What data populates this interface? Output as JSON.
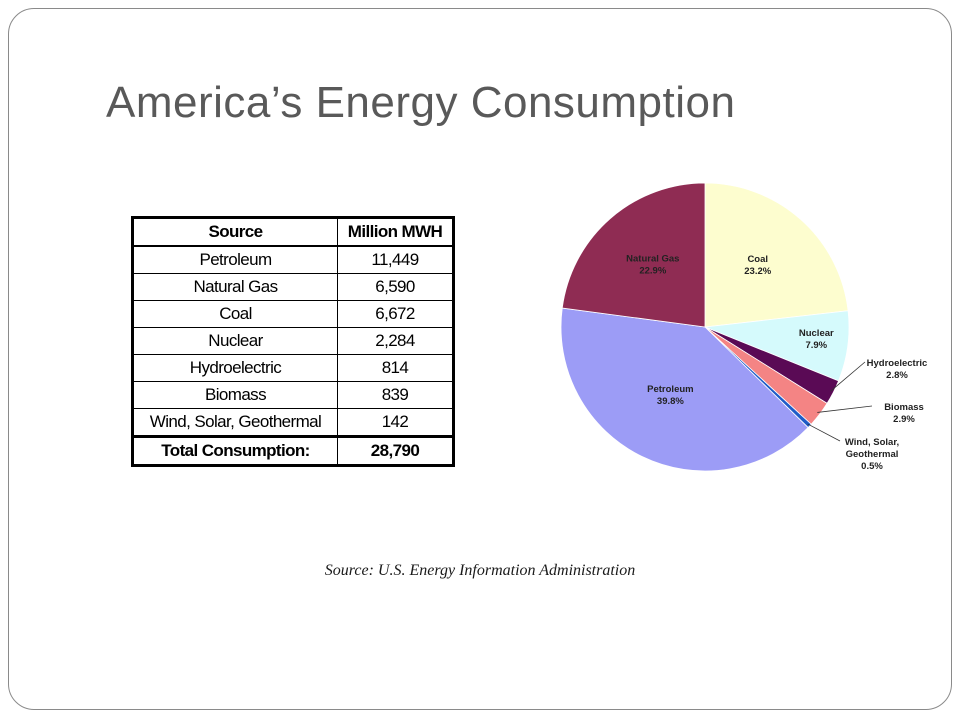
{
  "slide": {
    "title": "America’s Energy Consumption",
    "source_note": "Source: U.S. Energy Information Administration"
  },
  "table": {
    "headers": [
      "Source",
      "Million MWH"
    ],
    "rows": [
      {
        "source": "Petroleum",
        "value": "11,449"
      },
      {
        "source": "Natural Gas",
        "value": "6,590"
      },
      {
        "source": "Coal",
        "value": "6,672"
      },
      {
        "source": "Nuclear",
        "value": "2,284"
      },
      {
        "source": "Hydroelectric",
        "value": "814"
      },
      {
        "source": "Biomass",
        "value": "839"
      },
      {
        "source": "Wind, Solar, Geothermal",
        "value": "142"
      }
    ],
    "total": {
      "label": "Total Consumption:",
      "value": "28,790"
    }
  },
  "chart_data": {
    "type": "pie",
    "slices": [
      {
        "name": "Coal",
        "label_lines": [
          "Coal",
          "23.2%"
        ],
        "value": 23.2,
        "color": "#fdfdcf"
      },
      {
        "name": "Nuclear",
        "label_lines": [
          "Nuclear",
          "7.9%"
        ],
        "value": 7.9,
        "color": "#d5fafc"
      },
      {
        "name": "Hydroelectric",
        "label_lines": [
          "Hydroelectric",
          "2.8%"
        ],
        "value": 2.8,
        "color": "#5a0a55"
      },
      {
        "name": "Biomass",
        "label_lines": [
          "Biomass",
          "2.9%"
        ],
        "value": 2.9,
        "color": "#f48484"
      },
      {
        "name": "Wind, Solar, Geothermal",
        "label_lines": [
          "Wind, Solar,",
          "Geothermal",
          "0.5%"
        ],
        "value": 0.5,
        "color": "#1f5cc8"
      },
      {
        "name": "Petroleum",
        "label_lines": [
          "Petroleum",
          "39.8%"
        ],
        "value": 39.8,
        "color": "#9c9cf6"
      },
      {
        "name": "Natural Gas",
        "label_lines": [
          "Natural Gas",
          "22.9%"
        ],
        "value": 22.9,
        "color": "#8f2c53"
      }
    ],
    "start": "12 o'clock",
    "direction": "clockwise",
    "outside_labels": [
      "Hydroelectric",
      "Biomass",
      "Wind, Solar, Geothermal"
    ]
  }
}
